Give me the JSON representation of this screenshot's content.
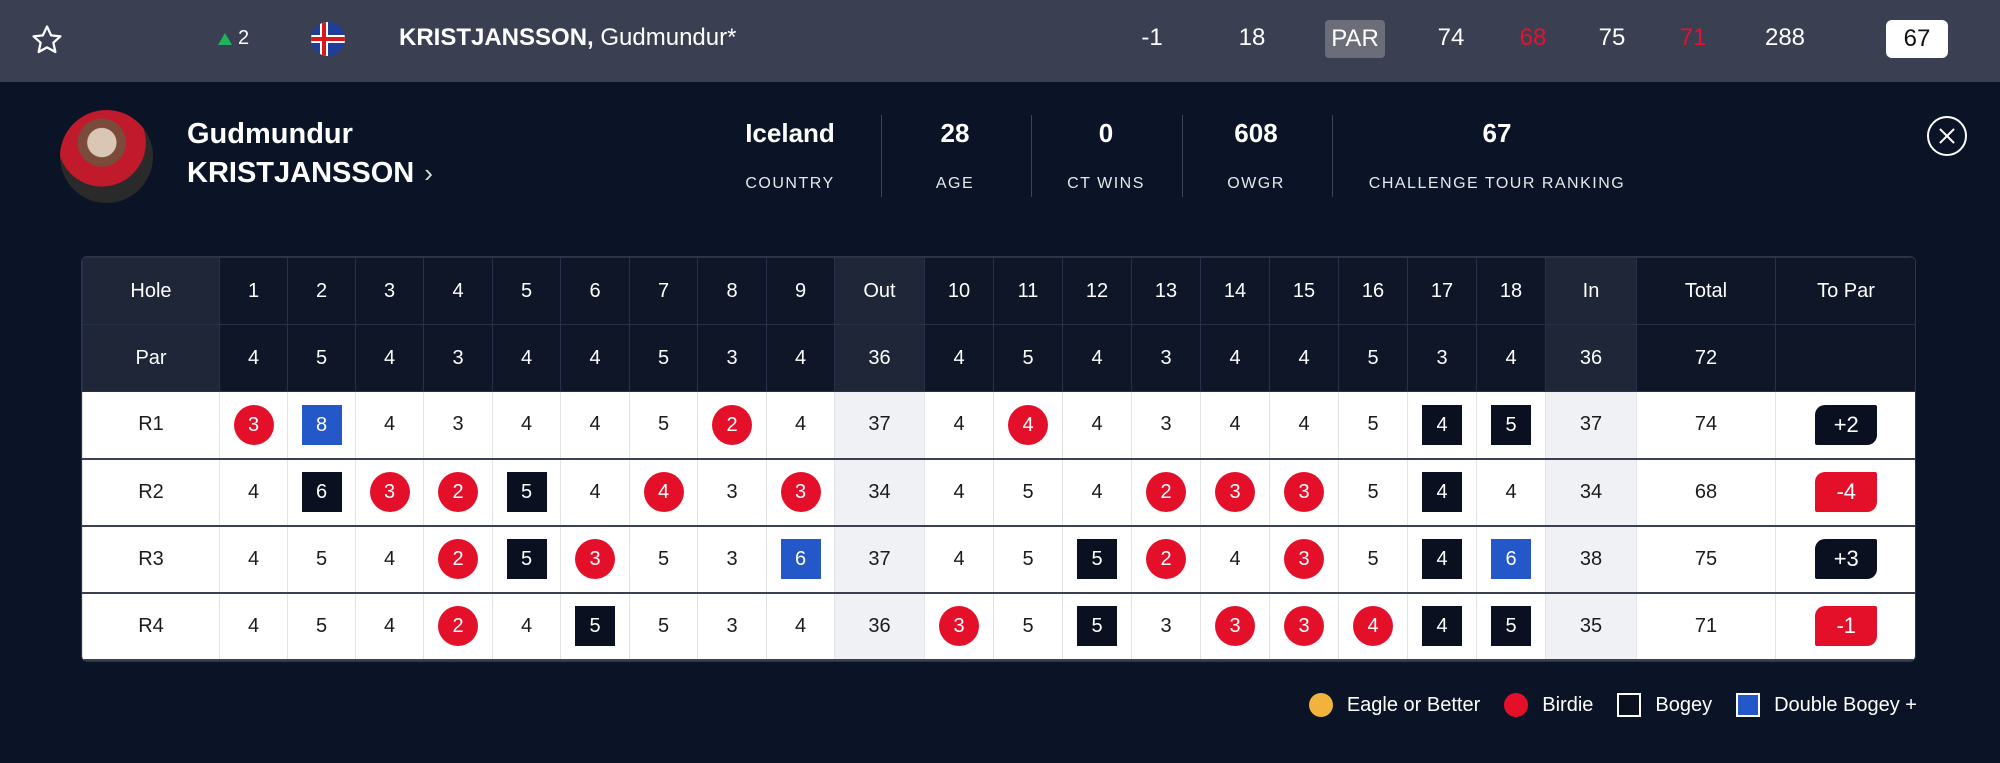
{
  "top": {
    "movement": "2",
    "player_last": "KRISTJANSSON,",
    "player_first": "Gudmundur*",
    "to_par": "-1",
    "thru": "18",
    "par_label": "PAR",
    "rounds": [
      "74",
      "68",
      "75",
      "71"
    ],
    "total": "288",
    "current": "67"
  },
  "player": {
    "first_name": "Gudmundur",
    "last_name": "KRISTJANSSON",
    "country": "Iceland",
    "country_label": "COUNTRY",
    "age": "28",
    "age_label": "AGE",
    "ct_wins": "0",
    "ct_wins_label": "CT WINS",
    "owgr": "608",
    "owgr_label": "OWGR",
    "ranking": "67",
    "ranking_label": "CHALLENGE TOUR RANKING"
  },
  "scorecard": {
    "hole_label": "Hole",
    "par_label": "Par",
    "holes_front": [
      "1",
      "2",
      "3",
      "4",
      "5",
      "6",
      "7",
      "8",
      "9"
    ],
    "out_label": "Out",
    "holes_back": [
      "10",
      "11",
      "12",
      "13",
      "14",
      "15",
      "16",
      "17",
      "18"
    ],
    "in_label": "In",
    "total_label": "Total",
    "to_par_label": "To Par",
    "par_front": [
      "4",
      "5",
      "4",
      "3",
      "4",
      "4",
      "5",
      "3",
      "4"
    ],
    "par_out": "36",
    "par_back": [
      "4",
      "5",
      "4",
      "3",
      "4",
      "4",
      "5",
      "3",
      "4"
    ],
    "par_in": "36",
    "par_total": "72",
    "rounds": [
      {
        "label": "R1",
        "front": [
          [
            "3",
            "birdie"
          ],
          [
            "8",
            "double"
          ],
          [
            "4",
            ""
          ],
          [
            "3",
            ""
          ],
          [
            "4",
            ""
          ],
          [
            "4",
            ""
          ],
          [
            "5",
            ""
          ],
          [
            "2",
            "birdie"
          ],
          [
            "4",
            ""
          ]
        ],
        "out": "37",
        "back": [
          [
            "4",
            ""
          ],
          [
            "4",
            "birdie"
          ],
          [
            "4",
            ""
          ],
          [
            "3",
            ""
          ],
          [
            "4",
            ""
          ],
          [
            "4",
            ""
          ],
          [
            "5",
            ""
          ],
          [
            "4",
            "bogey"
          ],
          [
            "5",
            "bogey"
          ]
        ],
        "in": "37",
        "total": "74",
        "to_par": "+2",
        "to_par_type": "over"
      },
      {
        "label": "R2",
        "front": [
          [
            "4",
            ""
          ],
          [
            "6",
            "bogey"
          ],
          [
            "3",
            "birdie"
          ],
          [
            "2",
            "birdie"
          ],
          [
            "5",
            "bogey"
          ],
          [
            "4",
            ""
          ],
          [
            "4",
            "birdie"
          ],
          [
            "3",
            ""
          ],
          [
            "3",
            "birdie"
          ]
        ],
        "out": "34",
        "back": [
          [
            "4",
            ""
          ],
          [
            "5",
            ""
          ],
          [
            "4",
            ""
          ],
          [
            "2",
            "birdie"
          ],
          [
            "3",
            "birdie"
          ],
          [
            "3",
            "birdie"
          ],
          [
            "5",
            ""
          ],
          [
            "4",
            "bogey"
          ],
          [
            "4",
            ""
          ]
        ],
        "in": "34",
        "total": "68",
        "to_par": "-4",
        "to_par_type": "under"
      },
      {
        "label": "R3",
        "front": [
          [
            "4",
            ""
          ],
          [
            "5",
            ""
          ],
          [
            "4",
            ""
          ],
          [
            "2",
            "birdie"
          ],
          [
            "5",
            "bogey"
          ],
          [
            "3",
            "birdie"
          ],
          [
            "5",
            ""
          ],
          [
            "3",
            ""
          ],
          [
            "6",
            "double"
          ]
        ],
        "out": "37",
        "back": [
          [
            "4",
            ""
          ],
          [
            "5",
            ""
          ],
          [
            "5",
            "bogey"
          ],
          [
            "2",
            "birdie"
          ],
          [
            "4",
            ""
          ],
          [
            "3",
            "birdie"
          ],
          [
            "5",
            ""
          ],
          [
            "4",
            "bogey"
          ],
          [
            "6",
            "double"
          ]
        ],
        "in": "38",
        "total": "75",
        "to_par": "+3",
        "to_par_type": "over"
      },
      {
        "label": "R4",
        "front": [
          [
            "4",
            ""
          ],
          [
            "5",
            ""
          ],
          [
            "4",
            ""
          ],
          [
            "2",
            "birdie"
          ],
          [
            "4",
            ""
          ],
          [
            "5",
            "bogey"
          ],
          [
            "5",
            ""
          ],
          [
            "3",
            ""
          ],
          [
            "4",
            ""
          ]
        ],
        "out": "36",
        "back": [
          [
            "3",
            "birdie"
          ],
          [
            "5",
            ""
          ],
          [
            "5",
            "bogey"
          ],
          [
            "3",
            ""
          ],
          [
            "3",
            "birdie"
          ],
          [
            "3",
            "birdie"
          ],
          [
            "4",
            "birdie"
          ],
          [
            "4",
            "bogey"
          ],
          [
            "5",
            "bogey"
          ]
        ],
        "in": "35",
        "total": "71",
        "to_par": "-1",
        "to_par_type": "under"
      }
    ]
  },
  "legend": {
    "eagle": "Eagle or Better",
    "birdie": "Birdie",
    "bogey": "Bogey",
    "double": "Double Bogey +"
  },
  "colors": {
    "birdie": "#e4102a",
    "eagle": "#f2b33d",
    "bogey": "#0a1020",
    "double_bogey": "#2457c8",
    "movement_up": "#1fb35a"
  }
}
